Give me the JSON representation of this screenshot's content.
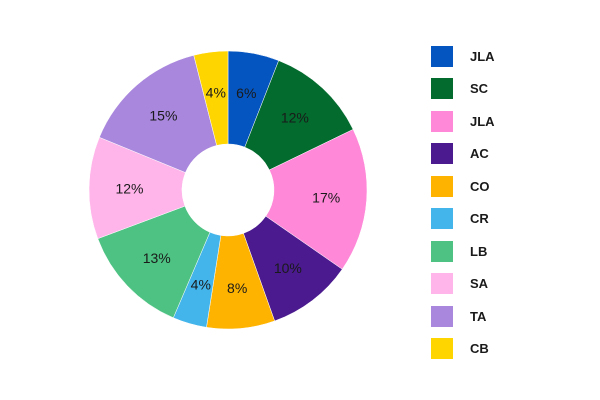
{
  "chart_data": {
    "type": "pie",
    "donut": true,
    "series": [
      {
        "label": "JLA",
        "value": 6,
        "display": "6%",
        "color": "#0555C1"
      },
      {
        "label": "SC",
        "value": 12,
        "display": "12%",
        "color": "#036B2D"
      },
      {
        "label": "JLA",
        "value": 17,
        "display": "17%",
        "color": "#FF88D8"
      },
      {
        "label": "AC",
        "value": 10,
        "display": "10%",
        "color": "#4A1A8E"
      },
      {
        "label": "CO",
        "value": 8,
        "display": "8%",
        "color": "#FEB300"
      },
      {
        "label": "CR",
        "value": 4,
        "display": "4%",
        "color": "#44B5EA"
      },
      {
        "label": "LB",
        "value": 13,
        "display": "13%",
        "color": "#4DC282"
      },
      {
        "label": "SA",
        "value": 12,
        "display": "12%",
        "color": "#FFB5EA"
      },
      {
        "label": "TA",
        "value": 15,
        "display": "15%",
        "color": "#A987DD"
      },
      {
        "label": "CB",
        "value": 4,
        "display": "4%",
        "color": "#FFD500"
      }
    ],
    "legend_position": "right",
    "start": "top",
    "direction": "clockwise"
  }
}
